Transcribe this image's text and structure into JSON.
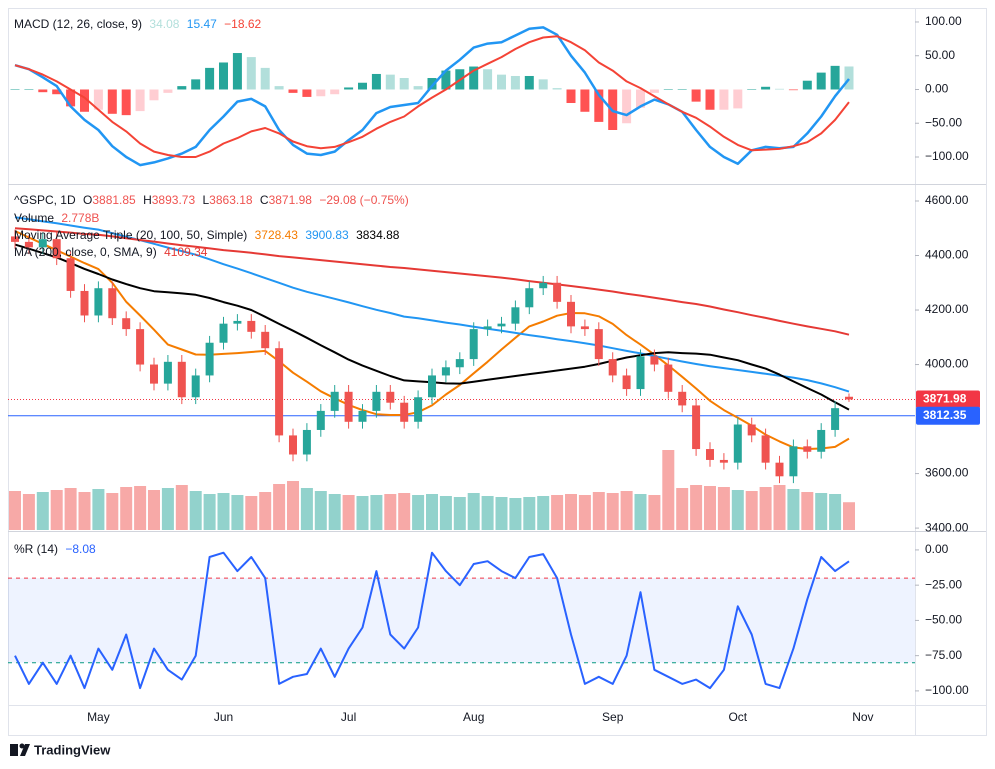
{
  "brand": "TradingView",
  "chart_data": [
    {
      "type": "macd",
      "title": "MACD (12, 26, close, 9)",
      "ylim": [
        -138.5,
        120.7
      ],
      "yticks": [
        {
          "value": 100,
          "label": "100.00"
        },
        {
          "value": 50,
          "label": "50.00"
        },
        {
          "value": 0,
          "label": "0.00"
        },
        {
          "value": -50,
          "label": "−50.00"
        },
        {
          "value": -100,
          "label": "−100.00"
        }
      ],
      "histogram": {
        "colors": [
          "#26a69a",
          "#b2dfdb",
          "#ff5252",
          "#ffcdd2"
        ],
        "values": [
          0,
          0,
          -4,
          -7,
          -25,
          -33,
          -30,
          -36,
          -38,
          -32,
          -16,
          -5,
          5,
          15,
          32,
          40,
          54,
          48,
          32,
          5,
          -5,
          -11,
          -10,
          -7,
          3,
          10,
          23,
          22,
          17,
          5,
          17,
          28,
          30,
          34,
          30,
          22,
          20,
          20,
          15,
          2,
          -20,
          -33,
          -48,
          -60,
          -50,
          -27,
          -5,
          0,
          0,
          -18,
          -30,
          -30,
          -28,
          0,
          4,
          1,
          -1,
          13,
          25,
          35,
          34.08,
          null
        ]
      },
      "macd": {
        "color": "#2196f3",
        "values": [
          36,
          30,
          18,
          5,
          -25,
          -45,
          -60,
          -84,
          -100,
          -112,
          -108,
          -102,
          -95,
          -85,
          -60,
          -40,
          -18,
          -14,
          -25,
          -60,
          -82,
          -95,
          -97,
          -92,
          -75,
          -60,
          -35,
          -26,
          -23,
          -20,
          5,
          28,
          44,
          62,
          68,
          70,
          80,
          90,
          92,
          81,
          50,
          25,
          -8,
          -32,
          -38,
          -25,
          -15,
          -22,
          -33,
          -60,
          -85,
          -100,
          -110,
          -90,
          -85,
          -87,
          -85,
          -65,
          -40,
          -10,
          15.47,
          null
        ]
      },
      "signal": {
        "color": "#f44336",
        "last_label": "−18.62",
        "values": [
          36,
          30,
          22,
          12,
          0,
          -12,
          -30,
          -48,
          -62,
          -80,
          -92,
          -97,
          -100,
          -100,
          -92,
          -80,
          -72,
          -62,
          -57,
          -65,
          -77,
          -84,
          -87,
          -85,
          -78,
          -70,
          -58,
          -48,
          -40,
          -25,
          -12,
          0,
          14,
          28,
          38,
          48,
          60,
          70,
          77,
          79,
          70,
          58,
          40,
          28,
          12,
          2,
          -10,
          -22,
          -33,
          -42,
          -55,
          -70,
          -82,
          -90,
          -89,
          -88,
          -84,
          -78,
          -65,
          -45,
          -18.62,
          null
        ]
      }
    },
    {
      "type": "candlestick",
      "title": "^GSPC, 1D",
      "ohlc_keys": [
        "O",
        "H",
        "L",
        "C"
      ],
      "change": "−29.08 (−0.75%)",
      "up_color": "#26a69a",
      "down_color": "#ef5350",
      "ylim": [
        3393,
        4655
      ],
      "yticks": [
        {
          "value": 4600,
          "label": "4600.00"
        },
        {
          "value": 4400,
          "label": "4400.00"
        },
        {
          "value": 4200,
          "label": "4200.00"
        },
        {
          "value": 4000,
          "label": "4000.00"
        },
        {
          "value": 3600,
          "label": "3600.00"
        },
        {
          "value": 3400,
          "label": "3400.00"
        }
      ],
      "open": [
        4470,
        4450,
        4430,
        4460,
        4390,
        4270,
        4180,
        4280,
        4170,
        4130,
        4000,
        3930,
        4010,
        3880,
        3960,
        4080,
        4150,
        4160,
        4120,
        4060,
        3740,
        3670,
        3760,
        3830,
        3900,
        3790,
        3830,
        3900,
        3860,
        3790,
        3880,
        3960,
        3990,
        4020,
        4130,
        4140,
        4150,
        4210,
        4280,
        4300,
        4230,
        4140,
        4130,
        4020,
        3960,
        3910,
        4030,
        4000,
        3900,
        3850,
        3690,
        3650,
        3640,
        3780,
        3740,
        3640,
        3590,
        3700,
        3680,
        3760,
        3881.85,
        null
      ],
      "high": [
        4495,
        4475,
        4485,
        4485,
        4415,
        4295,
        4305,
        4305,
        4195,
        4155,
        4025,
        4035,
        4035,
        3985,
        4105,
        4175,
        4185,
        4185,
        4145,
        4085,
        3765,
        3785,
        3855,
        3925,
        3925,
        3855,
        3925,
        3925,
        3885,
        3905,
        3985,
        4015,
        4045,
        4155,
        4165,
        4175,
        4235,
        4305,
        4325,
        4325,
        4255,
        4165,
        4155,
        4045,
        3985,
        4055,
        4055,
        4025,
        3925,
        3875,
        3715,
        3675,
        3805,
        3805,
        3765,
        3665,
        3725,
        3725,
        3785,
        3865,
        3893.73,
        null
      ],
      "low": [
        4425,
        4405,
        4405,
        4365,
        4245,
        4155,
        4155,
        4145,
        4105,
        3975,
        3905,
        3905,
        3855,
        3855,
        3935,
        4055,
        4125,
        4095,
        4035,
        3715,
        3645,
        3645,
        3735,
        3805,
        3765,
        3765,
        3805,
        3835,
        3765,
        3765,
        3855,
        3935,
        3965,
        3995,
        4105,
        4115,
        4125,
        4185,
        4255,
        4205,
        4115,
        4105,
        3995,
        3935,
        3885,
        3885,
        3975,
        3875,
        3825,
        3665,
        3625,
        3615,
        3615,
        3715,
        3615,
        3565,
        3565,
        3655,
        3655,
        3735,
        3863.18,
        null
      ],
      "close": [
        4450,
        4430,
        4460,
        4390,
        4270,
        4180,
        4280,
        4170,
        4130,
        4000,
        3930,
        4010,
        3880,
        3960,
        4080,
        4150,
        4160,
        4120,
        4060,
        3740,
        3670,
        3760,
        3830,
        3900,
        3790,
        3830,
        3900,
        3860,
        3790,
        3880,
        3960,
        3990,
        4020,
        4130,
        4140,
        4150,
        4210,
        4280,
        4300,
        4230,
        4140,
        4130,
        4020,
        3960,
        3910,
        4030,
        4000,
        3900,
        3850,
        3690,
        3650,
        3640,
        3780,
        3740,
        3640,
        3590,
        3700,
        3680,
        3760,
        3840,
        3871.98,
        null
      ],
      "volume": {
        "name": "Volume",
        "last_label": "2.778B",
        "values": [
          3.9,
          3.6,
          3.8,
          4.0,
          4.2,
          3.8,
          4.1,
          3.7,
          4.3,
          4.4,
          4.0,
          4.2,
          4.5,
          3.9,
          3.6,
          3.7,
          3.5,
          3.4,
          3.8,
          4.6,
          4.9,
          4.2,
          3.9,
          3.6,
          3.5,
          3.4,
          3.5,
          3.6,
          3.7,
          3.5,
          3.6,
          3.4,
          3.3,
          3.7,
          3.4,
          3.3,
          3.2,
          3.3,
          3.4,
          3.5,
          3.6,
          3.5,
          3.8,
          3.7,
          3.9,
          3.6,
          3.5,
          8.0,
          4.2,
          4.5,
          4.4,
          4.3,
          4.0,
          3.9,
          4.3,
          4.5,
          4.1,
          3.8,
          3.7,
          3.6,
          2.778,
          null
        ]
      },
      "indicators": [
        {
          "title": "Moving Average Triple (20, 100, 50, Simple)",
          "lines": [
            {
              "color": "#f57c00",
              "values": [
                4490,
                4466,
                4443,
                4419,
                4396,
                4372,
                4350,
                4300,
                4230,
                4180,
                4128,
                4073,
                4055,
                4037,
                4036,
                4039,
                4042,
                4046,
                4050,
                4012,
                3970,
                3937,
                3902,
                3876,
                3852,
                3833,
                3818,
                3815,
                3815,
                3825,
                3850,
                3890,
                3925,
                3968,
                4010,
                4055,
                4098,
                4140,
                4158,
                4179,
                4189,
                4188,
                4177,
                4149,
                4108,
                4073,
                4036,
                3997,
                3955,
                3912,
                3867,
                3833,
                3805,
                3776,
                3743,
                3718,
                3696,
                3690,
                3692,
                3698,
                3728.43,
                null
              ]
            },
            {
              "color": "#2196f3",
              "values": [
                4540,
                4533,
                4525,
                4518,
                4510,
                4502,
                4495,
                4482,
                4469,
                4456,
                4443,
                4429,
                4416,
                4403,
                4386,
                4368,
                4352,
                4335,
                4317,
                4300,
                4282,
                4267,
                4254,
                4241,
                4228,
                4214,
                4201,
                4189,
                4176,
                4170,
                4162,
                4154,
                4147,
                4139,
                4131,
                4124,
                4116,
                4108,
                4101,
                4093,
                4086,
                4078,
                4070,
                4060,
                4050,
                4041,
                4031,
                4021,
                4011,
                4002,
                3994,
                3987,
                3980,
                3973,
                3966,
                3959,
                3952,
                3943,
                3931,
                3917,
                3900.83,
                null
              ]
            },
            {
              "color": "#000000",
              "values": [
                4440,
                4425,
                4409,
                4393,
                4372,
                4351,
                4332,
                4312,
                4295,
                4280,
                4269,
                4265,
                4261,
                4256,
                4244,
                4229,
                4216,
                4200,
                4175,
                4149,
                4124,
                4098,
                4071,
                4045,
                4018,
                3996,
                3977,
                3958,
                3942,
                3938,
                3935,
                3931,
                3930,
                3937,
                3944,
                3951,
                3958,
                3965,
                3971,
                3978,
                3985,
                3992,
                4002,
                4014,
                4026,
                4034,
                4042,
                4045,
                4042,
                4040,
                4036,
                4026,
                4016,
                4000,
                3985,
                3963,
                3938,
                3914,
                3890,
                3862,
                3834.88,
                null
              ]
            }
          ]
        },
        {
          "title": "MA (200, close, 0, SMA, 9)",
          "lines": [
            {
              "color": "#e53935",
              "values": [
                4500,
                4496,
                4492,
                4488,
                4484,
                4479,
                4476,
                4470,
                4463,
                4457,
                4451,
                4444,
                4438,
                4432,
                4426,
                4420,
                4415,
                4410,
                4404,
                4398,
                4393,
                4388,
                4383,
                4378,
                4373,
                4368,
                4363,
                4358,
                4354,
                4349,
                4344,
                4339,
                4334,
                4329,
                4324,
                4319,
                4313,
                4306,
                4300,
                4294,
                4288,
                4282,
                4275,
                4268,
                4260,
                4253,
                4245,
                4237,
                4229,
                4222,
                4213,
                4202,
                4192,
                4181,
                4171,
                4160,
                4150,
                4140,
                4131,
                4122,
                4109.34,
                null
              ]
            }
          ]
        }
      ],
      "price_lines": [
        {
          "value": 3871.98,
          "color": "#f23645",
          "style": "dotted"
        },
        {
          "value": 3812.35,
          "color": "#2962ff",
          "style": "solid"
        }
      ]
    },
    {
      "type": "line",
      "title": "%R (14)",
      "color": "#2962ff",
      "last_label": "−8.08",
      "ylim": [
        -110,
        12
      ],
      "yticks": [
        {
          "value": 0,
          "label": "0.00"
        },
        {
          "value": -25,
          "label": "−25.00"
        },
        {
          "value": -50,
          "label": "−50.00"
        },
        {
          "value": -75,
          "label": "−75.00"
        },
        {
          "value": -100,
          "label": "−100.00"
        }
      ],
      "levels": [
        -20,
        -80
      ],
      "level_colors": [
        "#f23645",
        "#089981"
      ],
      "band_color": "#2962ff",
      "values": [
        -75,
        -95,
        -80,
        -95,
        -75,
        -98,
        -70,
        -85,
        -60,
        -98,
        -70,
        -85,
        -92,
        -75,
        -5,
        -2,
        -15,
        -5,
        -20,
        -95,
        -90,
        -88,
        -70,
        -90,
        -70,
        -55,
        -15,
        -60,
        -70,
        -55,
        -2,
        -15,
        -25,
        -10,
        -8,
        -15,
        -20,
        -5,
        -3,
        -20,
        -60,
        -95,
        -90,
        -95,
        -75,
        -30,
        -85,
        -90,
        -95,
        -92,
        -98,
        -85,
        -40,
        -60,
        -95,
        -98,
        -70,
        -35,
        -5,
        -15,
        -8.08,
        null
      ],
      "categories": [
        null,
        null,
        null,
        null,
        null,
        null,
        "May",
        null,
        null,
        null,
        null,
        null,
        null,
        null,
        null,
        "Jun",
        null,
        null,
        null,
        null,
        null,
        null,
        null,
        null,
        "Jul",
        null,
        null,
        null,
        null,
        null,
        null,
        null,
        null,
        "Aug",
        null,
        null,
        null,
        null,
        null,
        null,
        null,
        null,
        null,
        "Sep",
        null,
        null,
        null,
        null,
        null,
        null,
        null,
        null,
        "Oct",
        null,
        null,
        null,
        null,
        null,
        null,
        null,
        null,
        "Nov"
      ]
    }
  ]
}
